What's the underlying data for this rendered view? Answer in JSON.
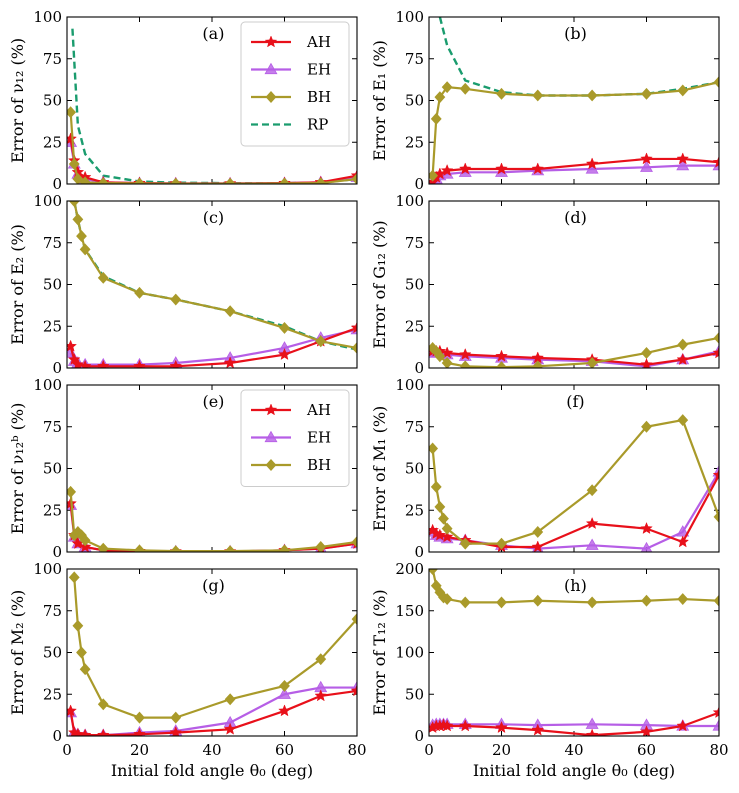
{
  "chart_data": {
    "type": "line",
    "xlabel": "Initial fold angle θ₀ (deg)",
    "xlim": [
      0,
      80
    ],
    "xticks": [
      0,
      20,
      40,
      60,
      80
    ],
    "colors": {
      "AH": "#e8101a",
      "EH": "#b65ee6",
      "BH": "#a99a2a",
      "RP": "#1a9c6e"
    },
    "legend_labels": {
      "AH": "AH",
      "EH": "EH",
      "BH": "BH",
      "RP": "RP"
    },
    "panels": [
      {
        "id": "a",
        "label": "(a)",
        "ylabel": "Error of ν₁₂ (%)",
        "ylim": [
          0,
          100
        ],
        "yticks": [
          0,
          25,
          50,
          75,
          100
        ],
        "legend": [
          "AH",
          "EH",
          "BH",
          "RP"
        ],
        "legend_position": "top-right",
        "series": [
          {
            "name": "AH",
            "x": [
              1,
              2,
              3,
              5,
              10,
              20,
              30,
              45,
              60,
              70,
              80
            ],
            "y": [
              27,
              14,
              7,
              4,
              1,
              0.5,
              0.3,
              0.3,
              0.5,
              1,
              5
            ]
          },
          {
            "name": "EH",
            "x": [
              1,
              2,
              3,
              5,
              10,
              20,
              30,
              45,
              60,
              70,
              80
            ],
            "y": [
              25,
              12,
              6,
              3,
              1,
              0.5,
              0.3,
              0.3,
              0.5,
              1,
              4
            ]
          },
          {
            "name": "BH",
            "x": [
              1,
              2,
              3,
              5,
              10,
              20,
              30,
              45,
              60,
              70,
              80
            ],
            "y": [
              43,
              12,
              3,
              1,
              0.5,
              0.3,
              0.2,
              0.2,
              0.3,
              0.5,
              3
            ]
          },
          {
            "name": "RP",
            "x": [
              1.5,
              3,
              5,
              10,
              20,
              30,
              45,
              60,
              70,
              80
            ],
            "y": [
              93,
              35,
              18,
              5,
              1.5,
              0.8,
              0.5,
              0.5,
              0.8,
              3
            ]
          }
        ]
      },
      {
        "id": "b",
        "label": "(b)",
        "ylabel": "Error of E₁ (%)",
        "ylim": [
          0,
          100
        ],
        "yticks": [
          0,
          25,
          50,
          75,
          100
        ],
        "series": [
          {
            "name": "AH",
            "x": [
              1,
              2,
              3,
              5,
              10,
              20,
              30,
              45,
              60,
              70,
              80
            ],
            "y": [
              1,
              4,
              6,
              8,
              9,
              9,
              9,
              12,
              15,
              15,
              13
            ]
          },
          {
            "name": "EH",
            "x": [
              1,
              2,
              3,
              5,
              10,
              20,
              30,
              45,
              60,
              70,
              80
            ],
            "y": [
              1,
              3,
              5,
              6,
              7,
              7,
              8,
              9,
              10,
              11,
              11
            ]
          },
          {
            "name": "BH",
            "x": [
              1,
              2,
              3,
              5,
              10,
              20,
              30,
              45,
              60,
              70,
              80
            ],
            "y": [
              5,
              39,
              52,
              58,
              57,
              54,
              53,
              53,
              54,
              56,
              61
            ]
          },
          {
            "name": "RP",
            "x": [
              3,
              5,
              10,
              20,
              30,
              45,
              60,
              70,
              80
            ],
            "y": [
              100,
              83,
              62,
              55,
              53,
              53,
              54,
              57,
              61
            ]
          }
        ]
      },
      {
        "id": "c",
        "label": "(c)",
        "ylabel": "Error of E₂ (%)",
        "ylim": [
          0,
          100
        ],
        "yticks": [
          0,
          25,
          50,
          75,
          100
        ],
        "series": [
          {
            "name": "AH",
            "x": [
              1,
              2,
              3,
              5,
              10,
              20,
              30,
              45,
              60,
              70,
              80
            ],
            "y": [
              13,
              5,
              2,
              1,
              1,
              1,
              1,
              3,
              8,
              16,
              24
            ]
          },
          {
            "name": "EH",
            "x": [
              1,
              2,
              3,
              5,
              10,
              20,
              30,
              45,
              60,
              70,
              80
            ],
            "y": [
              9,
              4,
              3,
              2,
              2,
              2,
              3,
              6,
              12,
              18,
              23
            ]
          },
          {
            "name": "BH",
            "x": [
              2,
              3,
              4,
              5,
              10,
              20,
              30,
              45,
              60,
              70,
              80
            ],
            "y": [
              100,
              89,
              79,
              71,
              54,
              45,
              41,
              34,
              24,
              16,
              12
            ]
          },
          {
            "name": "RP",
            "x": [
              2,
              3,
              4,
              5,
              10,
              20,
              30,
              45,
              60,
              70,
              80
            ],
            "y": [
              100,
              89,
              79,
              71,
              55,
              45,
              41,
              34,
              25,
              16,
              11
            ]
          }
        ]
      },
      {
        "id": "d",
        "label": "(d)",
        "ylabel": "Error of G₁₂ (%)",
        "ylim": [
          0,
          100
        ],
        "yticks": [
          0,
          25,
          50,
          75,
          100
        ],
        "series": [
          {
            "name": "AH",
            "x": [
              1,
              2,
              3,
              5,
              10,
              20,
              30,
              45,
              60,
              70,
              80
            ],
            "y": [
              10,
              10,
              10,
              9,
              8,
              7,
              6,
              5,
              2,
              5,
              9
            ]
          },
          {
            "name": "EH",
            "x": [
              1,
              2,
              3,
              5,
              10,
              20,
              30,
              45,
              60,
              70,
              80
            ],
            "y": [
              9,
              9,
              9,
              8,
              7,
              6,
              5,
              4,
              1,
              5,
              10
            ]
          },
          {
            "name": "BH",
            "x": [
              1,
              2,
              3,
              5,
              10,
              20,
              30,
              45,
              60,
              70,
              80
            ],
            "y": [
              12,
              10,
              7,
              3,
              1,
              0.5,
              1,
              3,
              9,
              14,
              18
            ]
          }
        ]
      },
      {
        "id": "e",
        "label": "(e)",
        "ylabel": "Error of ν₁₂ᵇ (%)",
        "ylim": [
          0,
          100
        ],
        "yticks": [
          0,
          25,
          50,
          75,
          100
        ],
        "legend": [
          "AH",
          "EH",
          "BH"
        ],
        "legend_position": "top-right",
        "series": [
          {
            "name": "AH",
            "x": [
              1,
              2,
              3,
              5,
              10,
              20,
              30,
              45,
              60,
              70,
              80
            ],
            "y": [
              29,
              10,
              5,
              3,
              1,
              0.5,
              0.3,
              0.3,
              1,
              2,
              5
            ]
          },
          {
            "name": "EH",
            "x": [
              1,
              2,
              3,
              5,
              10,
              20,
              30,
              45,
              60,
              70,
              80
            ],
            "y": [
              28,
              9,
              5,
              3,
              1,
              0.5,
              0.3,
              0.3,
              1,
              2,
              5
            ]
          },
          {
            "name": "BH",
            "x": [
              1,
              2,
              3,
              4,
              5,
              10,
              20,
              30,
              45,
              60,
              70,
              80
            ],
            "y": [
              36,
              10,
              12,
              10,
              7,
              2,
              1,
              0.5,
              0.5,
              1,
              3,
              6
            ]
          }
        ]
      },
      {
        "id": "f",
        "label": "(f)",
        "ylabel": "Error of M₁ (%)",
        "ylim": [
          0,
          100
        ],
        "yticks": [
          0,
          25,
          50,
          75,
          100
        ],
        "series": [
          {
            "name": "AH",
            "x": [
              1,
              2,
              3,
              5,
              10,
              20,
              30,
              45,
              60,
              70,
              80
            ],
            "y": [
              13,
              11,
              10,
              9,
              7,
              3,
              3,
              17,
              14,
              6,
              46
            ]
          },
          {
            "name": "EH",
            "x": [
              1,
              2,
              3,
              5,
              10,
              20,
              30,
              45,
              60,
              70,
              80
            ],
            "y": [
              12,
              10,
              9,
              8,
              7,
              4,
              2,
              4,
              2,
              12,
              48
            ]
          },
          {
            "name": "BH",
            "x": [
              1,
              2,
              3,
              4,
              5,
              10,
              20,
              30,
              45,
              60,
              70,
              80
            ],
            "y": [
              62,
              39,
              27,
              20,
              14,
              5,
              5,
              12,
              37,
              75,
              79,
              21
            ]
          }
        ]
      },
      {
        "id": "g",
        "label": "(g)",
        "ylabel": "Error of M₂ (%)",
        "ylim": [
          0,
          100
        ],
        "yticks": [
          0,
          25,
          50,
          75,
          100
        ],
        "series": [
          {
            "name": "AH",
            "x": [
              1,
              2,
              3,
              5,
              10,
              20,
              30,
              45,
              60,
              70,
              80
            ],
            "y": [
              15,
              2,
              1,
              0.5,
              0.5,
              1,
              2,
              4,
              15,
              24,
              27
            ]
          },
          {
            "name": "EH",
            "x": [
              1,
              2,
              3,
              5,
              10,
              20,
              30,
              45,
              60,
              70,
              80
            ],
            "y": [
              14,
              2,
              1,
              0.5,
              0.5,
              2,
              3,
              8,
              25,
              29,
              29
            ]
          },
          {
            "name": "BH",
            "x": [
              2,
              3,
              4,
              5,
              10,
              20,
              30,
              45,
              60,
              70,
              80
            ],
            "y": [
              95,
              66,
              50,
              40,
              19,
              11,
              11,
              22,
              30,
              46,
              70
            ]
          }
        ]
      },
      {
        "id": "h",
        "label": "(h)",
        "ylabel": "Error of T₁₂ (%)",
        "ylim": [
          0,
          200
        ],
        "yticks": [
          0,
          50,
          100,
          150,
          200
        ],
        "series": [
          {
            "name": "AH",
            "x": [
              1,
              2,
              3,
              4,
              5,
              10,
              20,
              30,
              45,
              60,
              70,
              80
            ],
            "y": [
              10,
              12,
              12,
              13,
              12,
              12,
              10,
              7,
              1,
              5,
              12,
              28
            ]
          },
          {
            "name": "EH",
            "x": [
              1,
              2,
              3,
              4,
              5,
              10,
              20,
              30,
              45,
              60,
              70,
              80
            ],
            "y": [
              13,
              14,
              14,
              14,
              14,
              14,
              14,
              13,
              14,
              13,
              12,
              12
            ]
          },
          {
            "name": "BH",
            "x": [
              1,
              2,
              3,
              4,
              5,
              10,
              20,
              30,
              45,
              60,
              70,
              80
            ],
            "y": [
              200,
              180,
              172,
              166,
              164,
              160,
              160,
              162,
              160,
              162,
              164,
              162
            ]
          }
        ]
      }
    ]
  }
}
